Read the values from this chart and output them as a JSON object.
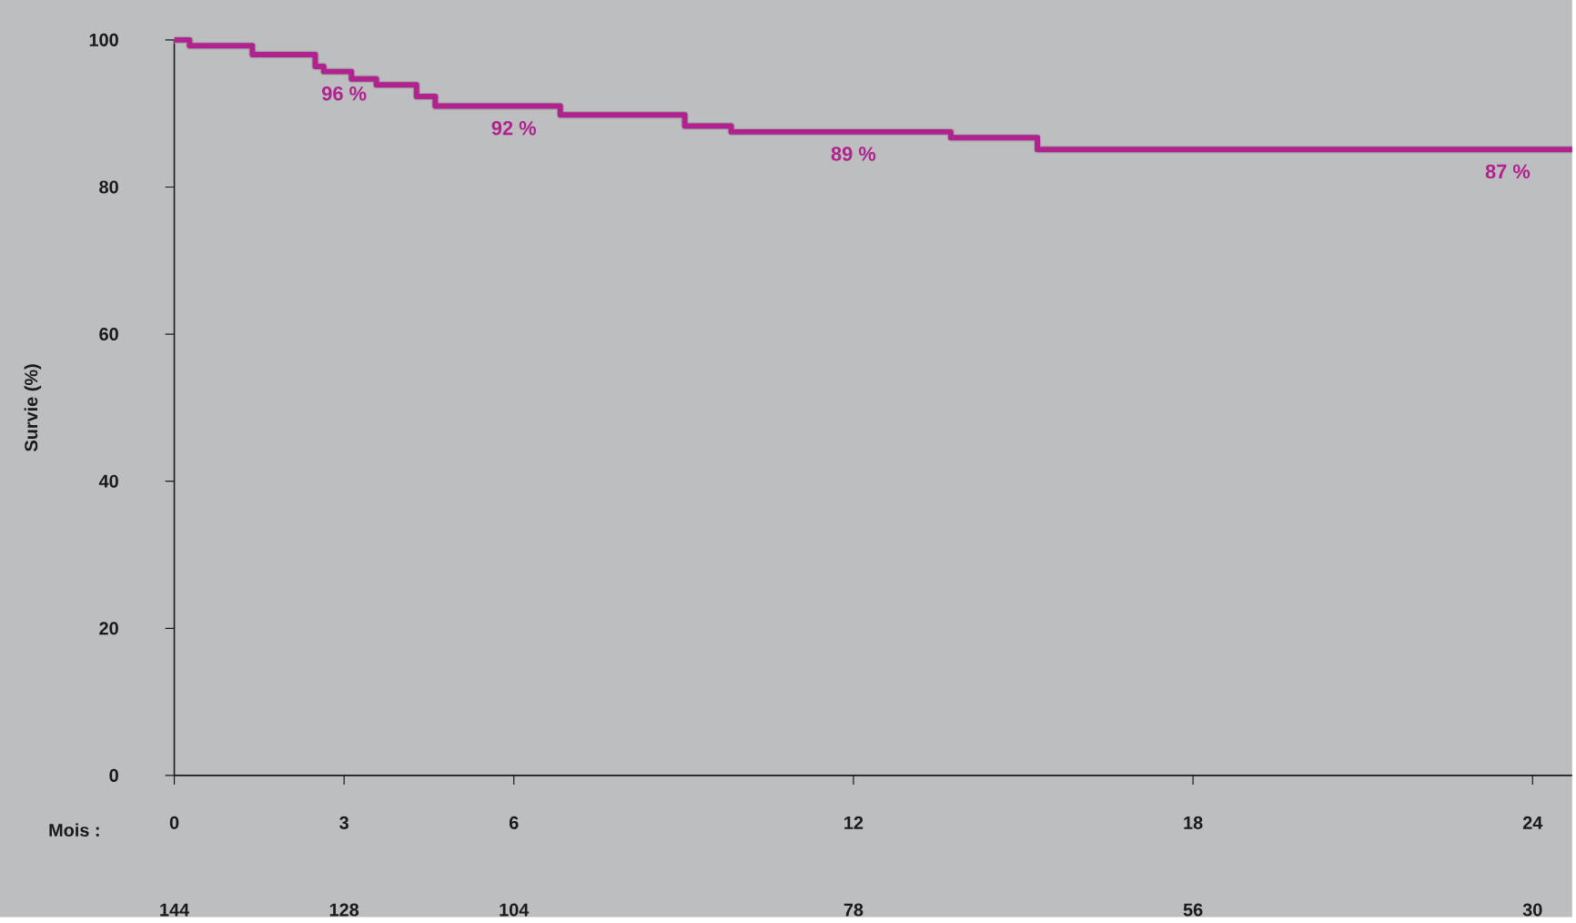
{
  "chart_data": {
    "type": "step",
    "xlabel": "Mois :",
    "ylabel": "Survie (%)",
    "x": [
      0,
      0.27,
      1.38,
      2.49,
      2.64,
      3.13,
      3.57,
      4.28,
      4.61,
      6.82,
      9.02,
      9.84,
      13.72,
      15.25,
      24.7
    ],
    "series": [
      {
        "color": "#b0238f",
        "values": [
          100,
          99.2,
          98.0,
          96.4,
          95.7,
          94.7,
          93.9,
          92.3,
          91.0,
          89.8,
          88.3,
          87.5,
          86.7,
          85.1,
          85.1
        ]
      }
    ],
    "xlim": [
      0,
      24.7
    ],
    "xticks": [
      0,
      3,
      6,
      12,
      18,
      24
    ],
    "ylim": [
      0,
      100
    ],
    "yticks": [
      0,
      20,
      40,
      60,
      80,
      100
    ],
    "grid": false,
    "marker": "none",
    "line_style": "solid",
    "annotations": [
      {
        "text": "96 %",
        "x": 3,
        "y": 95.7
      },
      {
        "text": "92 %",
        "x": 6,
        "y": 91.0
      },
      {
        "text": "89 %",
        "x": 12,
        "y": 87.5
      },
      {
        "text": "87 %",
        "x": 24,
        "y": 85.1
      },
      "144",
      "128",
      "104",
      "78",
      "56",
      "30"
    ]
  }
}
